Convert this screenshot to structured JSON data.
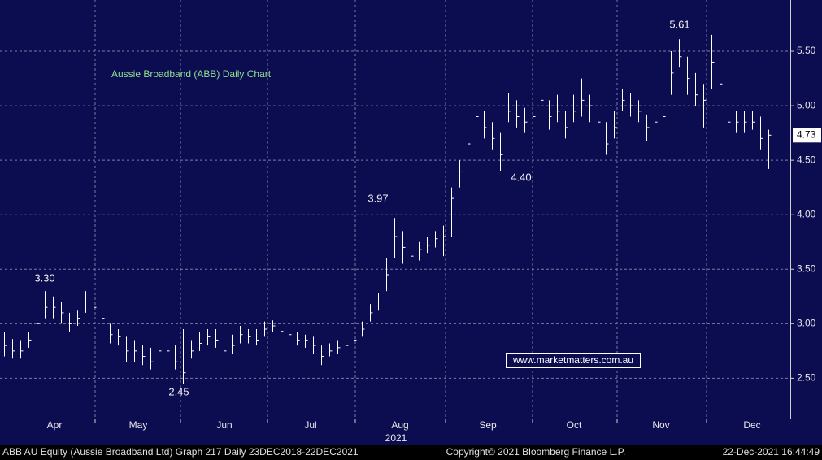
{
  "chart_data": {
    "type": "hlc",
    "title": "Aussie Broadband (ABB) Daily Chart",
    "watermark": "www.marketmatters.com.au",
    "annotations": [
      "3.30",
      "2.45",
      "3.97",
      "4.40",
      "5.61"
    ],
    "year_label": "2021",
    "footer": {
      "left": "ABB AU Equity (Aussie Broadband Ltd) Graph 217  Daily 23DEC2018-22DEC2021",
      "center": "Copyright© 2021 Bloomberg Finance L.P.",
      "right": "22-Dec-2021 16:44:49"
    },
    "color": "#ffffff",
    "grid": true,
    "grid_color": "#7c7ca8",
    "xlim": [
      -0.5,
      96.7
    ],
    "xticks": [
      {
        "value": 6.2,
        "label": "Apr"
      },
      {
        "value": 16.5,
        "label": "May"
      },
      {
        "value": 27.1,
        "label": "Jun"
      },
      {
        "value": 37.7,
        "label": "Jul"
      },
      {
        "value": 48.7,
        "label": "Aug"
      },
      {
        "value": 59.5,
        "label": "Sep"
      },
      {
        "value": 70.1,
        "label": "Oct"
      },
      {
        "value": 80.8,
        "label": "Nov"
      },
      {
        "value": 92.0,
        "label": "Dec"
      }
    ],
    "x_gridlines": [
      11.2,
      21.7,
      32.4,
      43.2,
      54.3,
      65.0,
      75.4,
      86.4
    ],
    "ylim": [
      2.13,
      5.97
    ],
    "yticks": [
      {
        "value": 2.5,
        "label": "2.50"
      },
      {
        "value": 3,
        "label": "3.00"
      },
      {
        "value": 3.5,
        "label": "3.50"
      },
      {
        "value": 4,
        "label": "4.00"
      },
      {
        "value": 4.5,
        "label": "4.50"
      },
      {
        "value": 5,
        "label": "5.00"
      },
      {
        "value": 5.5,
        "label": "5.50"
      }
    ],
    "last_value": 4.73,
    "x": [
      0,
      1,
      2,
      3,
      4,
      5,
      6,
      7,
      8,
      9,
      10,
      11,
      12,
      13,
      14,
      15,
      16,
      17,
      18,
      19,
      20,
      21,
      22,
      23,
      24,
      25,
      26,
      27,
      28,
      29,
      30,
      31,
      32,
      33,
      34,
      35,
      36,
      37,
      38,
      39,
      40,
      41,
      42,
      43,
      44,
      45,
      46,
      47,
      48,
      49,
      50,
      51,
      52,
      53,
      54,
      55,
      56,
      57,
      58,
      59,
      60,
      61,
      62,
      63,
      64,
      65,
      66,
      67,
      68,
      69,
      70,
      71,
      72,
      73,
      74,
      75,
      76,
      77,
      78,
      79,
      80,
      81,
      82,
      83,
      84,
      85,
      86,
      87,
      88,
      89,
      90,
      91,
      92,
      93,
      94
    ],
    "high": [
      2.92,
      2.86,
      2.85,
      2.92,
      3.08,
      3.3,
      3.25,
      3.2,
      3.1,
      3.12,
      3.3,
      3.25,
      3.15,
      3.0,
      2.95,
      2.88,
      2.85,
      2.8,
      2.78,
      2.82,
      2.85,
      2.8,
      2.95,
      2.85,
      2.92,
      2.95,
      2.95,
      2.85,
      2.9,
      2.98,
      2.95,
      2.95,
      3.02,
      3.03,
      3.0,
      2.98,
      2.92,
      2.9,
      2.88,
      2.8,
      2.82,
      2.85,
      2.85,
      2.92,
      3.02,
      3.18,
      3.28,
      3.6,
      3.97,
      3.85,
      3.75,
      3.75,
      3.8,
      3.85,
      3.9,
      4.25,
      4.5,
      4.8,
      5.05,
      4.95,
      4.85,
      4.75,
      5.12,
      5.05,
      4.98,
      5.0,
      5.22,
      5.05,
      5.1,
      4.95,
      5.1,
      5.25,
      5.1,
      5.0,
      4.85,
      4.95,
      5.15,
      5.12,
      5.05,
      4.92,
      4.95,
      5.05,
      5.5,
      5.61,
      5.45,
      5.3,
      5.2,
      5.65,
      5.45,
      5.1,
      4.95,
      4.95,
      4.95,
      4.9,
      4.78
    ],
    "low": [
      2.7,
      2.68,
      2.68,
      2.78,
      2.9,
      3.05,
      3.05,
      3.0,
      2.92,
      2.98,
      3.1,
      3.05,
      2.95,
      2.82,
      2.8,
      2.65,
      2.65,
      2.62,
      2.58,
      2.68,
      2.68,
      2.58,
      2.45,
      2.68,
      2.75,
      2.8,
      2.78,
      2.7,
      2.72,
      2.82,
      2.82,
      2.8,
      2.88,
      2.92,
      2.88,
      2.85,
      2.8,
      2.78,
      2.72,
      2.62,
      2.7,
      2.72,
      2.75,
      2.8,
      2.88,
      3.02,
      3.12,
      3.3,
      3.6,
      3.55,
      3.5,
      3.58,
      3.65,
      3.7,
      3.62,
      3.8,
      4.25,
      4.5,
      4.75,
      4.7,
      4.6,
      4.4,
      4.85,
      4.8,
      4.75,
      4.8,
      4.85,
      4.78,
      4.85,
      4.7,
      4.85,
      4.9,
      4.85,
      4.7,
      4.55,
      4.7,
      4.95,
      4.9,
      4.85,
      4.68,
      4.78,
      4.82,
      5.1,
      5.35,
      5.1,
      5.0,
      4.8,
      5.15,
      5.05,
      4.75,
      4.75,
      4.75,
      4.78,
      4.6,
      4.42
    ],
    "close": [
      2.8,
      2.75,
      2.75,
      2.85,
      3.0,
      3.15,
      3.15,
      3.1,
      3.0,
      3.05,
      3.2,
      3.15,
      3.05,
      2.9,
      2.88,
      2.75,
      2.75,
      2.7,
      2.65,
      2.75,
      2.75,
      2.65,
      2.55,
      2.75,
      2.82,
      2.88,
      2.85,
      2.75,
      2.8,
      2.9,
      2.88,
      2.85,
      2.95,
      2.98,
      2.93,
      2.9,
      2.85,
      2.85,
      2.8,
      2.7,
      2.75,
      2.78,
      2.8,
      2.85,
      2.95,
      3.1,
      3.2,
      3.45,
      3.8,
      3.7,
      3.62,
      3.68,
      3.72,
      3.78,
      3.8,
      4.15,
      4.4,
      4.65,
      4.9,
      4.8,
      4.7,
      4.55,
      4.95,
      4.9,
      4.85,
      4.9,
      5.05,
      4.9,
      4.95,
      4.8,
      4.95,
      5.05,
      5.0,
      4.85,
      4.65,
      4.8,
      5.05,
      5.0,
      4.95,
      4.8,
      4.85,
      4.9,
      5.3,
      5.45,
      5.25,
      5.1,
      5.05,
      5.4,
      5.2,
      4.85,
      4.85,
      4.85,
      4.85,
      4.7,
      4.73
    ]
  }
}
